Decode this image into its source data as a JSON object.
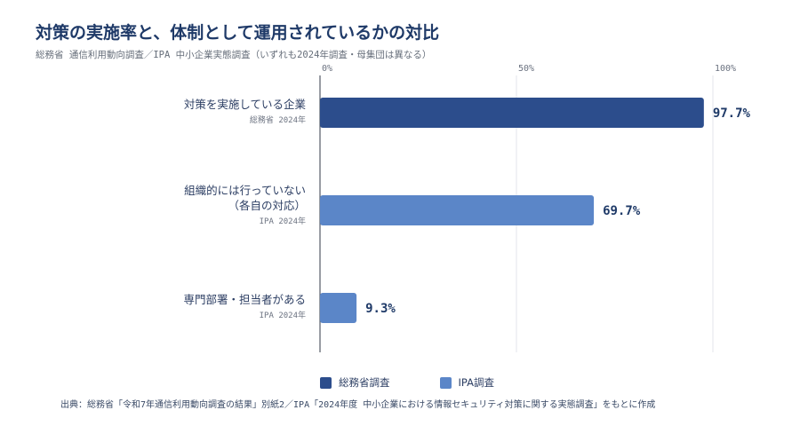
{
  "header": {
    "title": "対策の実施率と、体制として運用されているかの対比",
    "subtitle": "総務省 通信利用動向調査／IPA 中小企業実態調査（いずれも2024年調査・母集団は異なる）"
  },
  "chart_data": {
    "type": "bar",
    "orientation": "horizontal",
    "categories": [
      {
        "label_lines": [
          "対策を実施している企業"
        ],
        "source": "総務省 2024年",
        "series": "総務省調査"
      },
      {
        "label_lines": [
          "組織的には行っていない",
          "（各自の対応）"
        ],
        "source": "IPA 2024年",
        "series": "IPA調査"
      },
      {
        "label_lines": [
          "専門部署・担当者がある"
        ],
        "source": "IPA 2024年",
        "series": "IPA調査"
      }
    ],
    "values": [
      97.7,
      69.7,
      9.3
    ],
    "value_labels": [
      "97.7%",
      "69.7%",
      "9.3%"
    ],
    "xlim": [
      0,
      100
    ],
    "ticks": [
      0,
      50,
      100
    ],
    "tick_labels": [
      "0%",
      "50%",
      "100%"
    ],
    "axis_position": "top",
    "grid": true,
    "legend": [
      {
        "name": "総務省調査",
        "color": "#2c4d8c"
      },
      {
        "name": "IPA調査",
        "color": "#5b86c8"
      }
    ],
    "legend_position": "bottom"
  },
  "footer": {
    "source": "出典：総務省「令和7年通信利用動向調査の結果」別紙2／IPA「2024年度 中小企業における情報セキュリティ対策に関する実態調査」をもとに作成"
  }
}
